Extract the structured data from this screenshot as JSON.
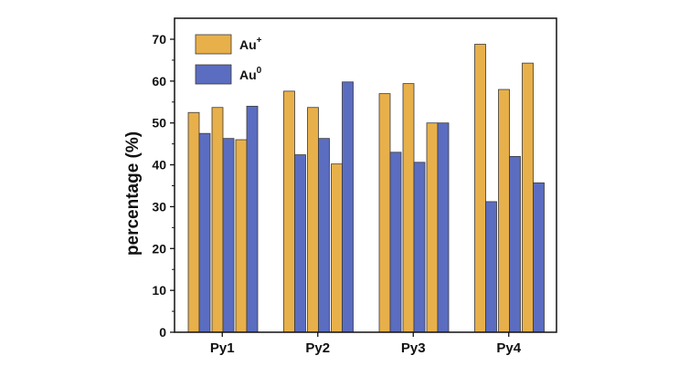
{
  "chart_data": {
    "type": "bar",
    "ylabel": "percentage (%)",
    "xlabel": "",
    "ylim": [
      0,
      75
    ],
    "yticks": [
      0,
      10,
      20,
      30,
      40,
      50,
      60,
      70
    ],
    "grid": false,
    "legend_position": "top-left",
    "groups": [
      "Py1",
      "Py2",
      "Py3",
      "Py4"
    ],
    "bars_per_group": 3,
    "series": [
      {
        "name": "Au",
        "name_superscript": "+",
        "color": "#E8B04A",
        "values": [
          [
            52.5,
            53.7,
            46.0
          ],
          [
            57.6,
            53.7,
            40.2
          ],
          [
            57.0,
            59.4,
            50.0
          ],
          [
            68.8,
            58.0,
            64.3
          ]
        ]
      },
      {
        "name": "Au",
        "name_superscript": "0",
        "color": "#5B6DC0",
        "values": [
          [
            47.5,
            46.3,
            54.0
          ],
          [
            42.4,
            46.3,
            59.8
          ],
          [
            43.0,
            40.6,
            50.0
          ],
          [
            31.2,
            42.0,
            35.7
          ]
        ]
      }
    ]
  }
}
